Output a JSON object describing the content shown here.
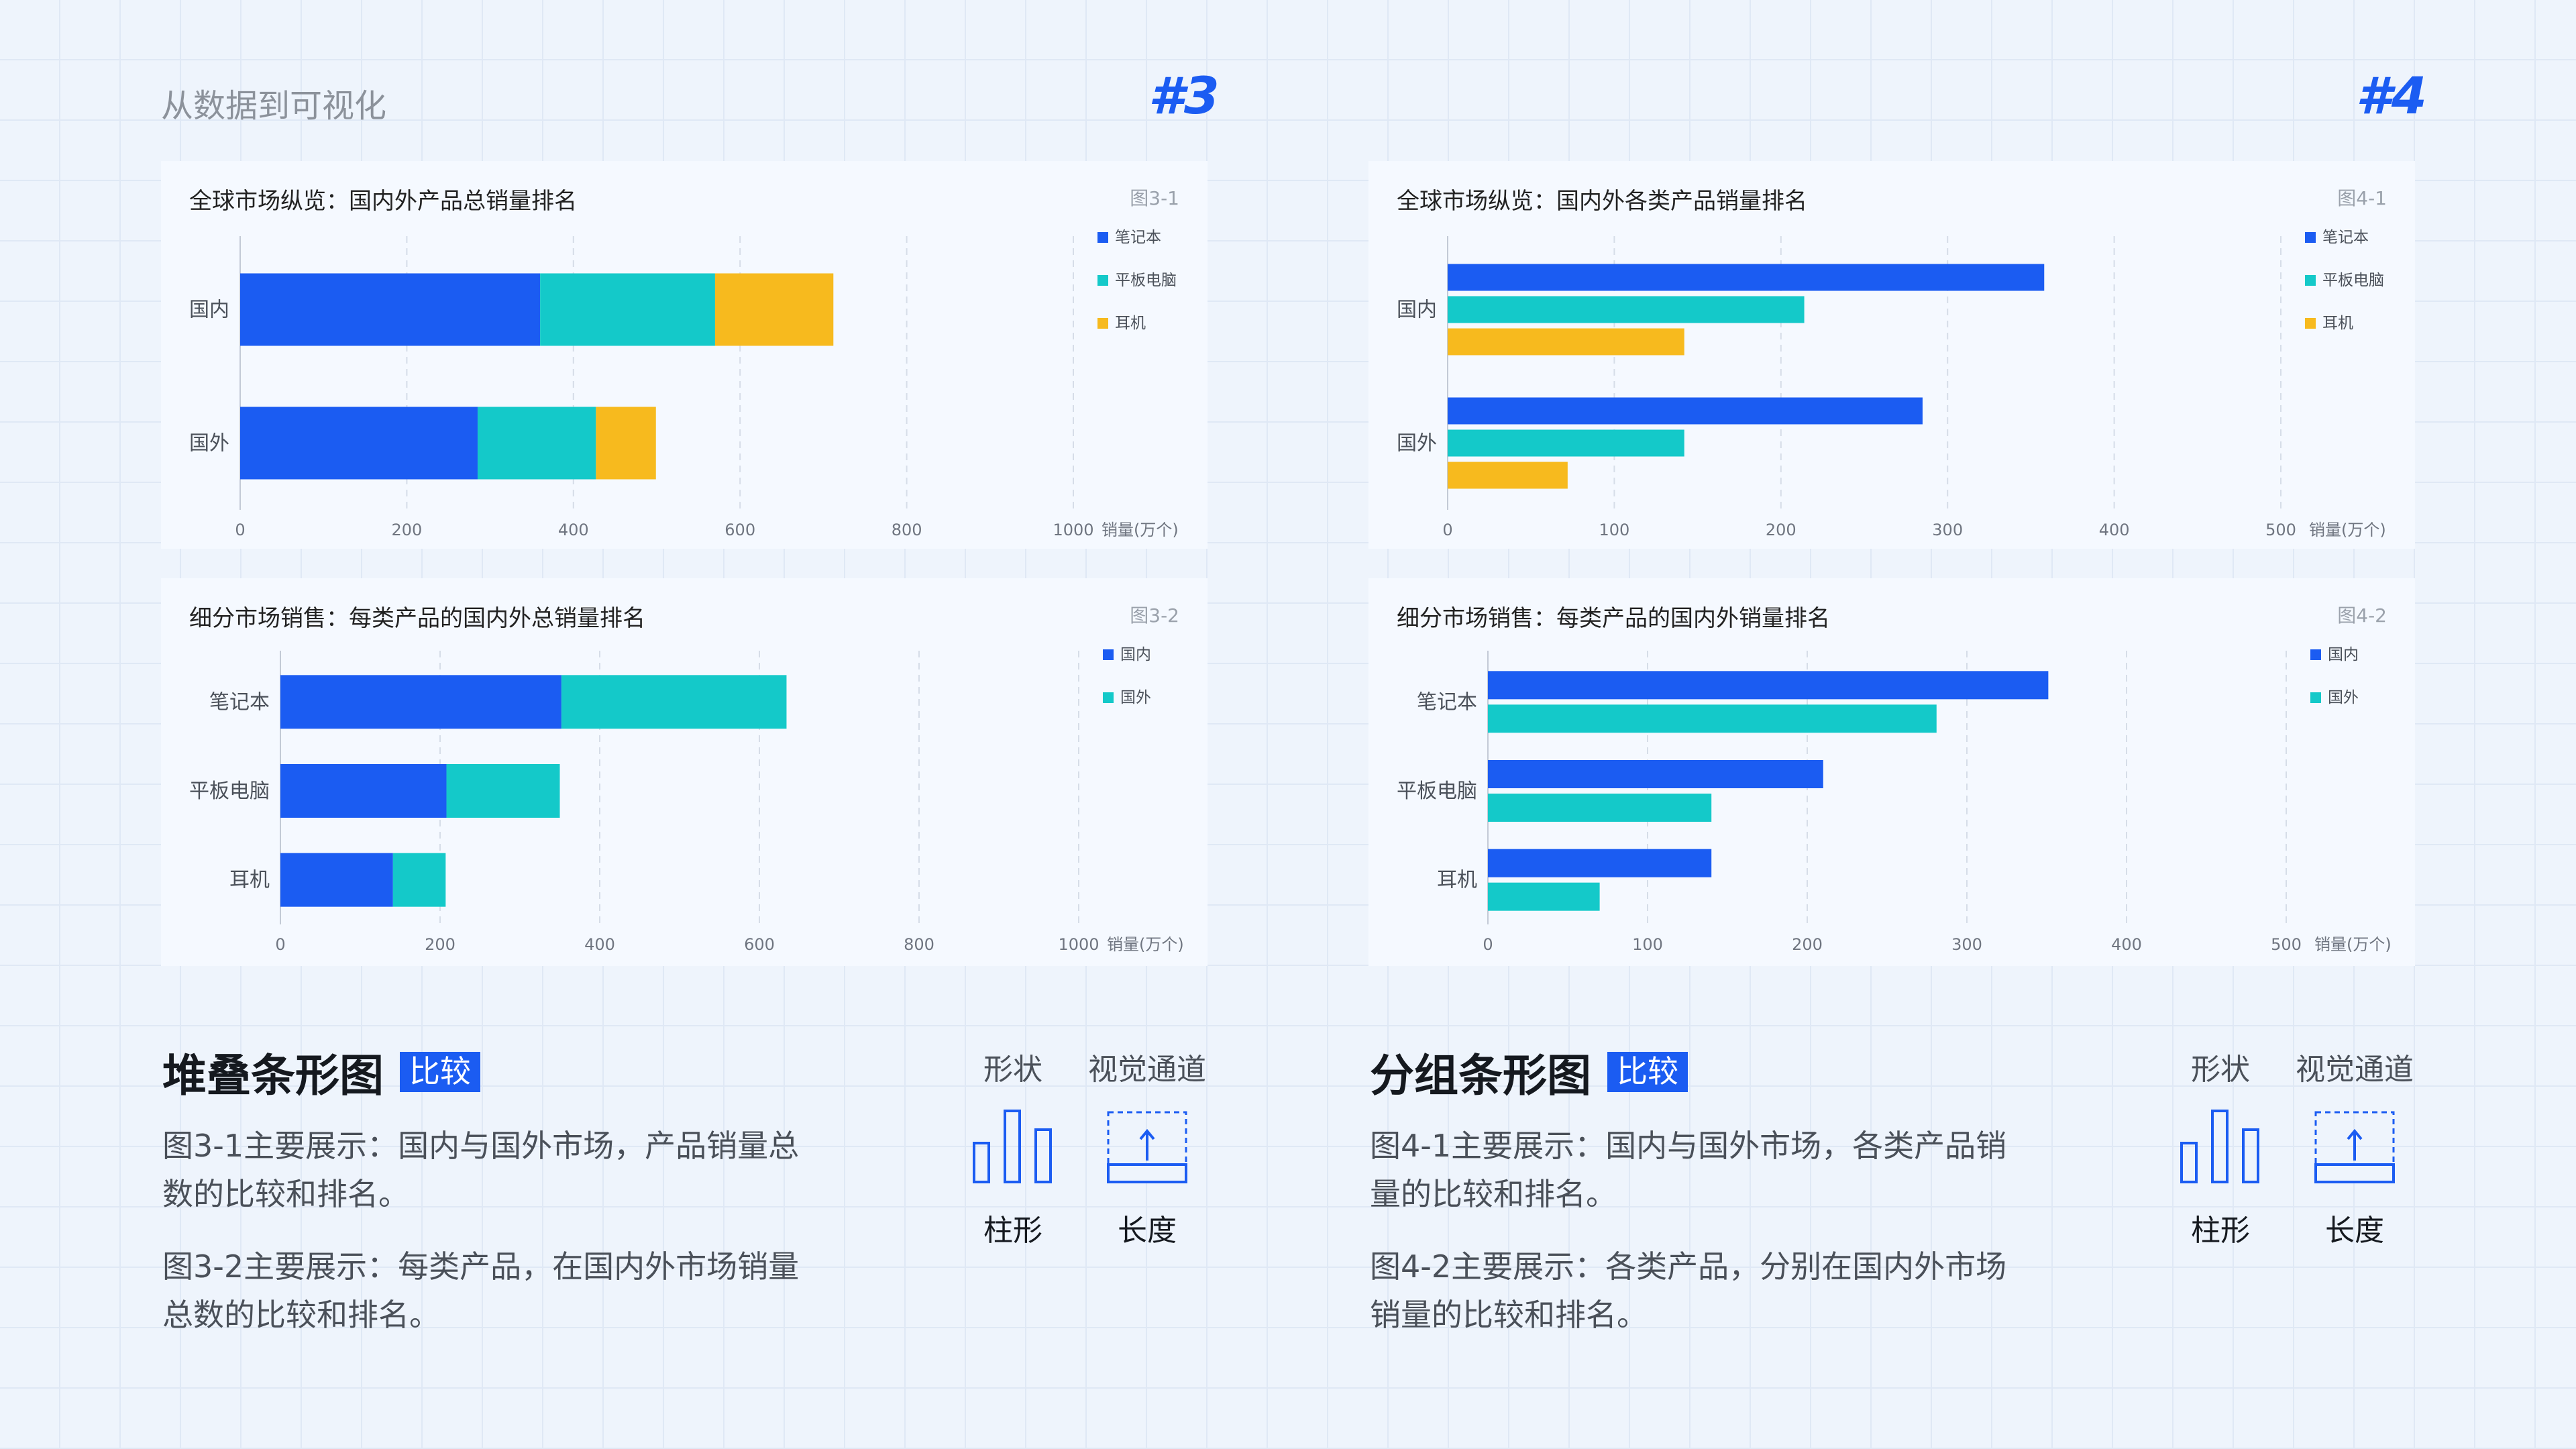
{
  "page": {
    "title": "从数据到可视化",
    "num_left": "#3",
    "num_right": "#4"
  },
  "colors": {
    "notebook": "#1b5cf2",
    "tablet": "#14c9c9",
    "earphone": "#f7ba1e",
    "domestic": "#1b5cf2",
    "overseas": "#14c9c9"
  },
  "chart_data": [
    {
      "id": "fig3-1",
      "type": "bar",
      "orientation": "horizontal",
      "mode": "stacked",
      "title": "全球市场纵览：国内外产品总销量排名",
      "label": "图3-1",
      "categories": [
        "国内",
        "国外"
      ],
      "series": [
        {
          "name": "笔记本",
          "color": "#1b5cf2",
          "values": [
            360,
            285
          ]
        },
        {
          "name": "平板电脑",
          "color": "#14c9c9",
          "values": [
            210,
            142
          ]
        },
        {
          "name": "耳机",
          "color": "#f7ba1e",
          "values": [
            142,
            72
          ]
        }
      ],
      "x_ticks": [
        "0",
        "200",
        "400",
        "600",
        "800",
        "1000"
      ],
      "xlim": [
        0,
        1000
      ],
      "xlabel": "销量(万个)",
      "legend": "top-right"
    },
    {
      "id": "fig3-2",
      "type": "bar",
      "orientation": "horizontal",
      "mode": "stacked",
      "title": "细分市场销售：每类产品的国内外总销量排名",
      "label": "图3-2",
      "categories": [
        "笔记本",
        "平板电脑",
        "耳机"
      ],
      "series": [
        {
          "name": "国内",
          "color": "#1b5cf2",
          "values": [
            352,
            208,
            141
          ]
        },
        {
          "name": "国外",
          "color": "#14c9c9",
          "values": [
            282,
            142,
            66
          ]
        }
      ],
      "x_ticks": [
        "0",
        "200",
        "400",
        "600",
        "800",
        "1000"
      ],
      "xlim": [
        0,
        1000
      ],
      "xlabel": "销量(万个)",
      "legend": "top-right"
    },
    {
      "id": "fig4-1",
      "type": "bar",
      "orientation": "horizontal",
      "mode": "grouped",
      "title": "全球市场纵览：国内外各类产品销量排名",
      "label": "图4-1",
      "categories": [
        "国内",
        "国外"
      ],
      "series": [
        {
          "name": "笔记本",
          "color": "#1b5cf2",
          "values": [
            358,
            285
          ]
        },
        {
          "name": "平板电脑",
          "color": "#14c9c9",
          "values": [
            214,
            142
          ]
        },
        {
          "name": "耳机",
          "color": "#f7ba1e",
          "values": [
            142,
            72
          ]
        }
      ],
      "x_ticks": [
        "0",
        "100",
        "200",
        "300",
        "400",
        "500"
      ],
      "xlim": [
        0,
        500
      ],
      "xlabel": "销量(万个)",
      "legend": "top-right"
    },
    {
      "id": "fig4-2",
      "type": "bar",
      "orientation": "horizontal",
      "mode": "grouped",
      "title": "细分市场销售：每类产品的国内外销量排名",
      "label": "图4-2",
      "categories": [
        "笔记本",
        "平板电脑",
        "耳机"
      ],
      "series": [
        {
          "name": "国内",
          "color": "#1b5cf2",
          "values": [
            351,
            210,
            140
          ]
        },
        {
          "name": "国外",
          "color": "#14c9c9",
          "values": [
            281,
            140,
            70
          ]
        }
      ],
      "x_ticks": [
        "0",
        "100",
        "200",
        "300",
        "400",
        "500"
      ],
      "xlim": [
        0,
        500
      ],
      "xlabel": "销量(万个)",
      "legend": "top-right"
    }
  ],
  "sections": {
    "left": {
      "title": "堆叠条形图",
      "tag": "比较",
      "desc1": "图3-1主要展示：国内与国外市场，产品销量总数的比较和排名。",
      "desc2": "图3-2主要展示：每类产品，在国内外市场销量总数的比较和排名。",
      "shape_head": "形状",
      "shape_label": "柱形",
      "channel_head": "视觉通道",
      "channel_label": "长度",
      "shape_icon": "bar-shape-icon",
      "channel_icon": "length-channel-icon"
    },
    "right": {
      "title": "分组条形图",
      "tag": "比较",
      "desc1": "图4-1主要展示：国内与国外市场，各类产品销量的比较和排名。",
      "desc2": "图4-2主要展示：各类产品，分别在国内外市场销量的比较和排名。",
      "shape_head": "形状",
      "shape_label": "柱形",
      "channel_head": "视觉通道",
      "channel_label": "长度",
      "shape_icon": "bar-shape-icon",
      "channel_icon": "length-channel-icon"
    }
  }
}
